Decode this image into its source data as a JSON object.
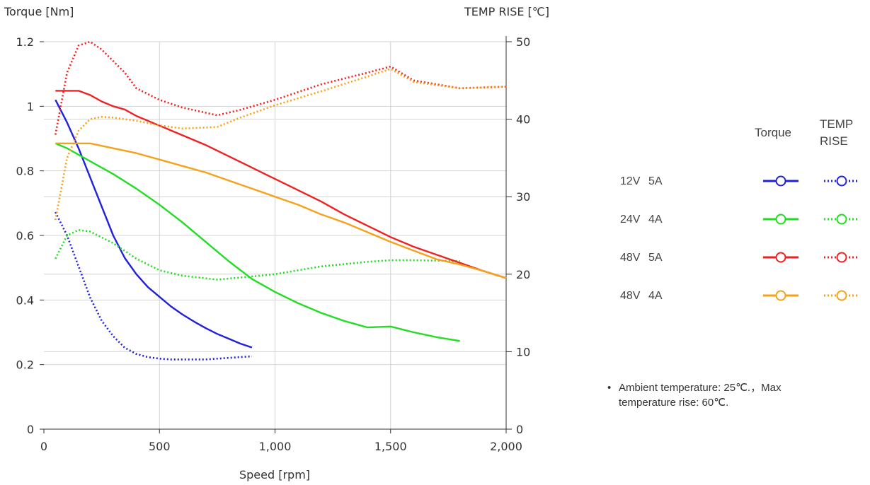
{
  "chart_data": {
    "type": "line",
    "y_left_label": "Torque  [Nm]",
    "y_right_label": "TEMP RISE [℃]",
    "xlabel": "Speed [rpm]",
    "xlim": [
      0,
      2000
    ],
    "ylim_left": [
      0,
      1.2
    ],
    "ylim_right": [
      0,
      50
    ],
    "x_ticks": [
      0,
      500,
      1000,
      1500,
      2000
    ],
    "x_tick_labels": [
      "0",
      "500",
      "1,000",
      "1,500",
      "2,000"
    ],
    "y_left_ticks": [
      0,
      0.2,
      0.4,
      0.6,
      0.8,
      1,
      1.2
    ],
    "y_left_tick_labels": [
      "0",
      "0.2",
      "0.4",
      "0.6",
      "0.8",
      "1",
      "1.2"
    ],
    "y_right_ticks": [
      0,
      10,
      20,
      30,
      40,
      50
    ],
    "y_right_tick_labels": [
      "0",
      "10",
      "20",
      "30",
      "40",
      "50"
    ],
    "grid": true,
    "legend_position": "right",
    "series": [
      {
        "name": "12V 5A",
        "kind": "torque",
        "color": "#2020dd",
        "x": [
          50,
          100,
          150,
          200,
          250,
          300,
          350,
          400,
          450,
          500,
          550,
          600,
          650,
          700,
          750,
          800,
          850,
          900
        ],
        "y": [
          1.02,
          0.95,
          0.87,
          0.78,
          0.69,
          0.6,
          0.53,
          0.48,
          0.44,
          0.41,
          0.38,
          0.355,
          0.333,
          0.313,
          0.295,
          0.28,
          0.265,
          0.253
        ]
      },
      {
        "name": "12V 5A",
        "kind": "temp",
        "color": "#2020dd",
        "x": [
          50,
          100,
          150,
          200,
          250,
          300,
          350,
          400,
          450,
          500,
          550,
          600,
          650,
          700,
          750,
          800,
          850,
          900
        ],
        "y": [
          28,
          25,
          21,
          17,
          14,
          12,
          10.5,
          9.7,
          9.3,
          9.1,
          9.0,
          9.0,
          9.0,
          9.0,
          9.1,
          9.2,
          9.3,
          9.4
        ]
      },
      {
        "name": "24V 4A",
        "kind": "torque",
        "color": "#22dd22",
        "x": [
          50,
          100,
          200,
          300,
          400,
          500,
          600,
          700,
          800,
          900,
          1000,
          1100,
          1200,
          1300,
          1400,
          1500,
          1600,
          1700,
          1800
        ],
        "y": [
          0.885,
          0.87,
          0.83,
          0.79,
          0.745,
          0.695,
          0.64,
          0.58,
          0.52,
          0.465,
          0.425,
          0.39,
          0.36,
          0.335,
          0.315,
          0.318,
          0.3,
          0.285,
          0.273
        ]
      },
      {
        "name": "24V 4A",
        "kind": "temp",
        "color": "#22dd22",
        "x": [
          50,
          100,
          150,
          200,
          300,
          400,
          500,
          600,
          750,
          900,
          1000,
          1200,
          1400,
          1500,
          1600,
          1800
        ],
        "y": [
          22,
          25,
          25.7,
          25.5,
          24,
          22,
          20.5,
          19.8,
          19.3,
          19.7,
          20,
          21,
          21.6,
          21.8,
          21.8,
          21.7
        ]
      },
      {
        "name": "48V 5A",
        "kind": "torque",
        "color": "#ee2222",
        "x": [
          50,
          100,
          150,
          200,
          250,
          300,
          350,
          400,
          500,
          600,
          700,
          800,
          900,
          1000,
          1100,
          1200,
          1300,
          1400,
          1500,
          1600,
          1700,
          1800,
          1900,
          2000
        ],
        "y": [
          1.048,
          1.048,
          1.048,
          1.035,
          1.015,
          1.0,
          0.99,
          0.97,
          0.94,
          0.91,
          0.88,
          0.845,
          0.81,
          0.775,
          0.74,
          0.705,
          0.665,
          0.63,
          0.595,
          0.565,
          0.54,
          0.515,
          0.49,
          0.468
        ]
      },
      {
        "name": "48V 5A",
        "kind": "temp",
        "color": "#ee2222",
        "x": [
          50,
          100,
          150,
          200,
          250,
          300,
          350,
          400,
          500,
          600,
          750,
          850,
          1000,
          1200,
          1400,
          1500,
          1600,
          1800,
          2000
        ],
        "y": [
          38,
          46,
          49.5,
          50,
          49,
          47.5,
          46,
          44,
          42.5,
          41.5,
          40.5,
          41.2,
          42.5,
          44.5,
          46,
          46.8,
          45,
          44,
          44.2
        ]
      },
      {
        "name": "48V 4A",
        "kind": "torque",
        "color": "#f4a21a",
        "x": [
          50,
          100,
          150,
          200,
          300,
          400,
          500,
          600,
          700,
          800,
          900,
          1000,
          1100,
          1200,
          1300,
          1400,
          1500,
          1600,
          1700,
          1800,
          1900,
          2000
        ],
        "y": [
          0.885,
          0.885,
          0.885,
          0.885,
          0.87,
          0.855,
          0.835,
          0.815,
          0.795,
          0.77,
          0.745,
          0.72,
          0.695,
          0.665,
          0.64,
          0.61,
          0.58,
          0.553,
          0.526,
          0.51,
          0.49,
          0.468
        ]
      },
      {
        "name": "48V 4A",
        "kind": "temp",
        "color": "#f4a21a",
        "x": [
          50,
          100,
          150,
          200,
          250,
          300,
          400,
          500,
          600,
          750,
          850,
          1000,
          1200,
          1400,
          1500,
          1600,
          1800,
          2000
        ],
        "y": [
          27,
          35,
          38.5,
          40,
          40.3,
          40.2,
          39.8,
          39.2,
          38.8,
          39,
          40.2,
          41.8,
          43.6,
          45.5,
          46.5,
          44.8,
          44,
          44.2
        ]
      }
    ]
  },
  "legend": {
    "torque_header": "Torque",
    "temp_header_line1": "TEMP",
    "temp_header_line2": "RISE",
    "rows": [
      {
        "voltage": "12V",
        "current": "5A",
        "color": "#2020dd"
      },
      {
        "voltage": "24V",
        "current": "4A",
        "color": "#22dd22"
      },
      {
        "voltage": "48V",
        "current": "5A",
        "color": "#ee2222"
      },
      {
        "voltage": "48V",
        "current": "4A",
        "color": "#f4a21a"
      }
    ]
  },
  "note": {
    "bullet": "•",
    "line1": "Ambient temperature: 25℃.，Max",
    "line2": "temperature rise: 60℃."
  }
}
